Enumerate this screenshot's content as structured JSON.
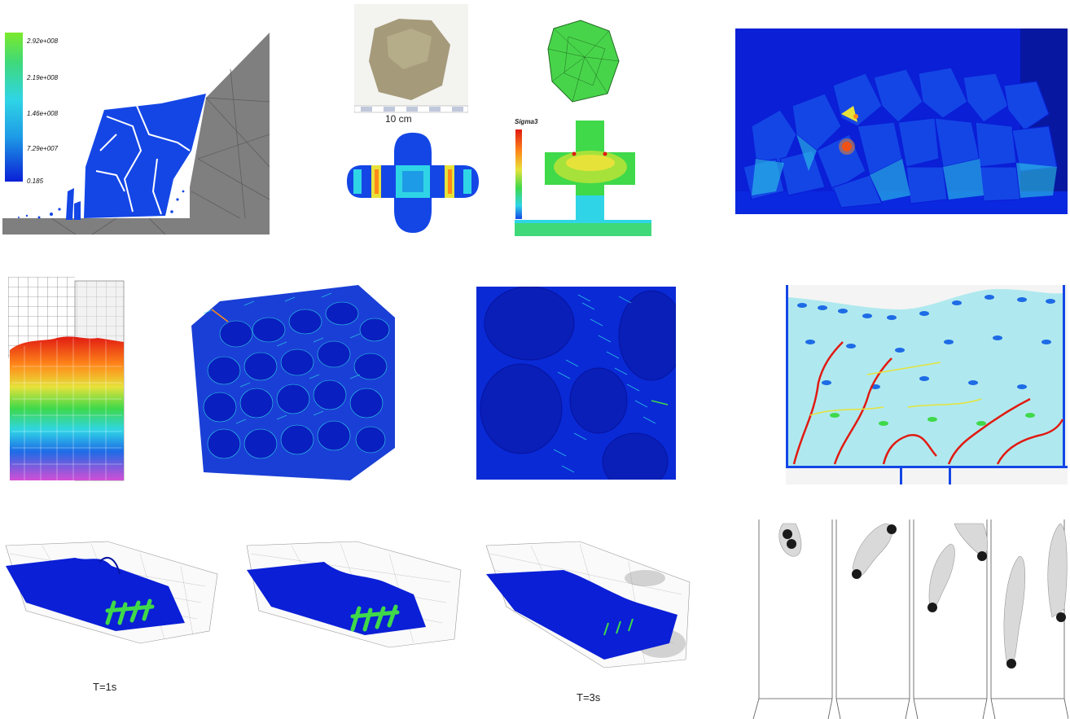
{
  "colors": {
    "blue_deep": "#0a1fd6",
    "blue_mid": "#1446e6",
    "cyan": "#2fd5e6",
    "green": "#3fd94a",
    "yellow": "#e6e23a",
    "orange": "#ff8a1a",
    "red": "#e11a12",
    "gray_wall": "#7f7f7f"
  },
  "panel_fracture": {
    "legend_ticks": [
      "2.92e+008",
      "2.19e+008",
      "1.46e+008",
      "7.29e+007",
      "0.185"
    ]
  },
  "panel_rock": {
    "scale_label": "10 cm"
  },
  "panel_cross": {
    "legend_title": "Sigma3"
  },
  "time_labels": {
    "t1": "T=1s",
    "t3": "T=3s"
  }
}
